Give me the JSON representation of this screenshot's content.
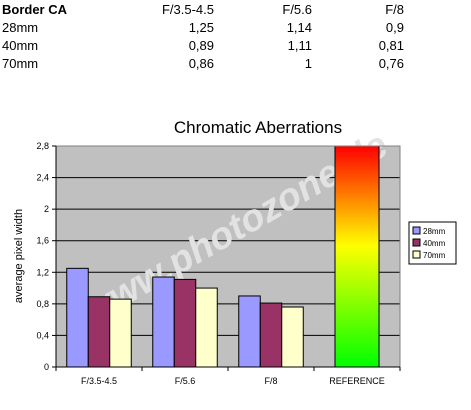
{
  "table": {
    "header": [
      "Border CA",
      "F/3.5-4.5",
      "F/5.6",
      "F/8"
    ],
    "rows": [
      [
        "28mm",
        "1,25",
        "1,14",
        "0,9"
      ],
      [
        "40mm",
        "0,89",
        "1,11",
        "0,81"
      ],
      [
        "70mm",
        "0,86",
        "1",
        "0,76"
      ]
    ]
  },
  "watermark": "www.photozone.de",
  "chart_data": {
    "type": "bar",
    "title": "Chromatic Aberrations",
    "ylabel": "average pixel width",
    "xlabel": "",
    "categories": [
      "F/3.5-4.5",
      "F/5.6",
      "F/8",
      "REFERENCE"
    ],
    "series": [
      {
        "name": "28mm",
        "color": "#9999ff",
        "values": [
          1.25,
          1.14,
          0.9,
          null
        ]
      },
      {
        "name": "40mm",
        "color": "#993366",
        "values": [
          0.89,
          1.11,
          0.81,
          null
        ]
      },
      {
        "name": "70mm",
        "color": "#ffffcc",
        "values": [
          0.86,
          1.0,
          0.76,
          null
        ]
      }
    ],
    "reference": {
      "category": "REFERENCE",
      "value": 2.8,
      "gradient": [
        "#ff0000",
        "#ffff00",
        "#00ff00"
      ]
    },
    "ylim": [
      0,
      2.8
    ],
    "yticks": [
      0,
      0.4,
      0.8,
      1.2,
      1.6,
      2,
      2.4,
      2.8
    ],
    "ytick_labels": [
      "0",
      "0,4",
      "0,8",
      "1,2",
      "1,6",
      "2",
      "2,4",
      "2,8"
    ],
    "grid": true,
    "plot_background": "#c0c0c0",
    "legend_position": "right"
  }
}
